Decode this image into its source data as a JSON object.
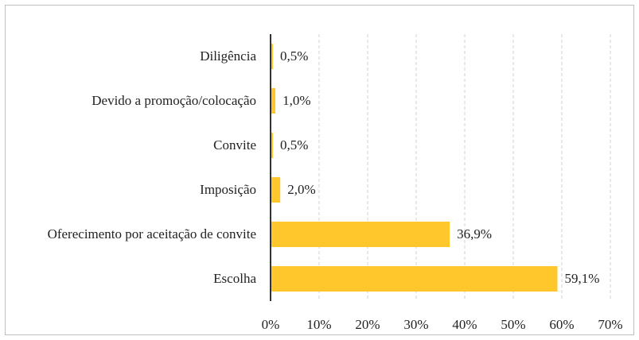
{
  "chart_data": {
    "type": "bar",
    "orientation": "horizontal",
    "categories": [
      "Diligência",
      "Devido a promoção/colocação",
      "Convite",
      "Imposição",
      "Oferecimento por aceitação de convite",
      "Escolha"
    ],
    "values": [
      0.5,
      1.0,
      0.5,
      2.0,
      36.9,
      59.1
    ],
    "value_labels": [
      "0,5%",
      "1,0%",
      "0,5%",
      "2,0%",
      "36,9%",
      "59,1%"
    ],
    "color": "#ffc72c",
    "xlim": [
      0,
      70
    ],
    "xticks": [
      {
        "value": 0,
        "label": "0%"
      },
      {
        "value": 10,
        "label": "10%"
      },
      {
        "value": 20,
        "label": "20%"
      },
      {
        "value": 30,
        "label": "30%"
      },
      {
        "value": 40,
        "label": "40%"
      },
      {
        "value": 50,
        "label": "50%"
      },
      {
        "value": 60,
        "label": "60%"
      },
      {
        "value": 70,
        "label": "70%"
      }
    ],
    "grid": true
  }
}
